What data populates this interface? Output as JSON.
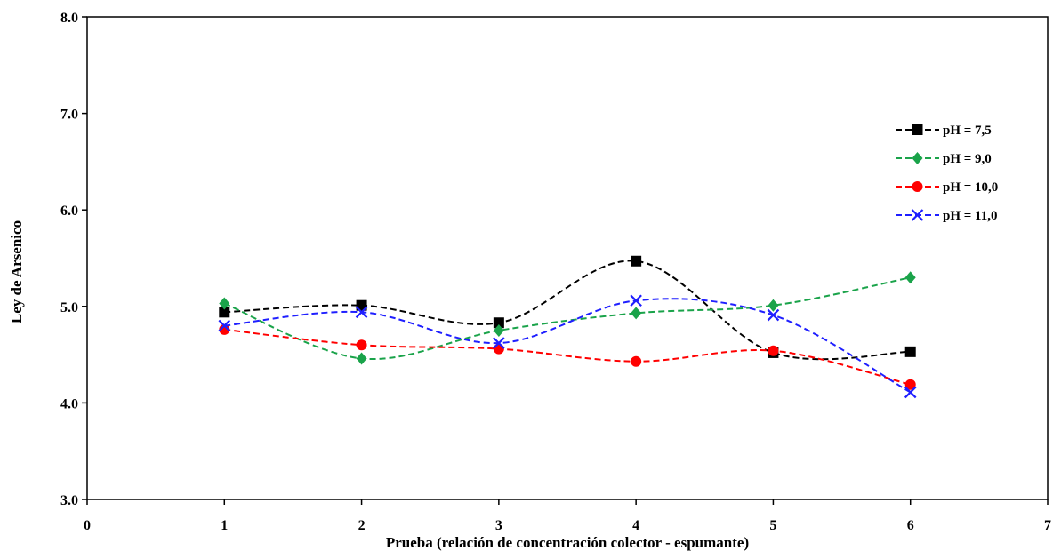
{
  "chart_data": {
    "type": "line",
    "xlabel": "Prueba (relación de concentración colector - espumante)",
    "ylabel": "Ley de Arsenico",
    "xlim": [
      0,
      7
    ],
    "ylim": [
      3.0,
      8.0
    ],
    "xticks": [
      "0",
      "1",
      "2",
      "3",
      "4",
      "5",
      "6",
      "7"
    ],
    "yticks": [
      "3.0",
      "4.0",
      "5.0",
      "6.0",
      "7.0",
      "8.0"
    ],
    "grid": false,
    "legend_position": "right",
    "smooth": true,
    "x": [
      1,
      2,
      3,
      4,
      5,
      6
    ],
    "series": [
      {
        "name": "pH = 7,5",
        "color": "#000000",
        "marker": "square",
        "values": [
          4.94,
          5.01,
          4.83,
          5.47,
          4.52,
          4.53
        ]
      },
      {
        "name": "pH = 9,0",
        "color": "#1aa34a",
        "marker": "diamond",
        "values": [
          5.03,
          4.46,
          4.75,
          4.93,
          5.01,
          5.3
        ]
      },
      {
        "name": "pH = 10,0",
        "color": "#ff0000",
        "marker": "circle",
        "values": [
          4.76,
          4.6,
          4.56,
          4.43,
          4.54,
          4.19
        ]
      },
      {
        "name": "pH = 11,0",
        "color": "#1f1fff",
        "marker": "cross",
        "values": [
          4.8,
          4.94,
          4.62,
          5.06,
          4.91,
          4.11
        ]
      }
    ]
  }
}
